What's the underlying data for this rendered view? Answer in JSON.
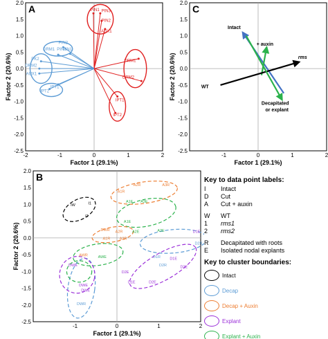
{
  "panels": {
    "A": {
      "letter": "A",
      "xlabel": "Factor 1 (29.1%)",
      "ylabel": "Factor 2 (20.6%)"
    },
    "B": {
      "letter": "B",
      "xlabel": "Factor 1 (29.1%)",
      "ylabel": "Factor 2 (20.6%)"
    },
    "C": {
      "letter": "C",
      "xlabel": "Factor 1 (29.1%)",
      "ylabel": "Factor 2 (20.6%)"
    }
  },
  "chart_data": [
    {
      "type": "scatter",
      "panel": "A",
      "xlim": [
        -2,
        2
      ],
      "ylim": [
        -2.5,
        2.0
      ],
      "xticks": [
        "-2",
        "-1",
        "0",
        "1",
        "2"
      ],
      "yticks": [
        "2.0",
        "1.5",
        "1.0",
        "0.5",
        "0.0",
        "-0.5",
        "-1.0",
        "-1.5",
        "-2.0",
        "-2.5"
      ],
      "colors": {
        "red": "#e02020",
        "blue": "#5b9bd5"
      },
      "labels": [
        {
          "text": "PIN1",
          "x": 0.02,
          "y": 1.75,
          "color": "red"
        },
        {
          "text": "PIN3",
          "x": 0.35,
          "y": 1.72,
          "color": "red"
        },
        {
          "text": "PIN2",
          "x": 0.35,
          "y": 1.42,
          "color": "red"
        },
        {
          "text": "AUX1",
          "x": 0.36,
          "y": 1.1,
          "color": "red"
        },
        {
          "text": "DRM1",
          "x": 1.05,
          "y": 0.2,
          "color": "red"
        },
        {
          "text": "DRM2",
          "x": 1.0,
          "y": -0.3,
          "color": "red"
        },
        {
          "text": "IPT1",
          "x": 0.75,
          "y": -1.0,
          "color": "red"
        },
        {
          "text": "IPT2",
          "x": 0.68,
          "y": -1.45,
          "color": "red"
        },
        {
          "text": "PIN2",
          "x": -0.9,
          "y": 0.75,
          "color": "blue"
        },
        {
          "text": "DRM1",
          "x": -1.32,
          "y": 0.55,
          "color": "blue"
        },
        {
          "text": "PIN1",
          "x": -0.78,
          "y": 0.55,
          "color": "blue"
        },
        {
          "text": "PIN3",
          "x": -0.95,
          "y": 0.55,
          "color": "blue"
        },
        {
          "text": "PK2",
          "x": -1.72,
          "y": 0.25,
          "color": "blue"
        },
        {
          "text": "DRM2",
          "x": -1.84,
          "y": 0.05,
          "color": "blue"
        },
        {
          "text": "AUX1",
          "x": -1.83,
          "y": -0.2,
          "color": "blue"
        },
        {
          "text": "IPT1",
          "x": -1.15,
          "y": -0.6,
          "color": "blue"
        },
        {
          "text": "IPT2",
          "x": -1.44,
          "y": -0.72,
          "color": "blue"
        }
      ],
      "vectors": [
        {
          "x": -0.02,
          "y": 1.68,
          "color": "red"
        },
        {
          "x": 0.18,
          "y": 1.68,
          "color": "red"
        },
        {
          "x": 0.22,
          "y": 1.45,
          "color": "red"
        },
        {
          "x": 0.32,
          "y": 1.2,
          "color": "red"
        },
        {
          "x": 1.3,
          "y": 0.3,
          "color": "red"
        },
        {
          "x": 1.38,
          "y": -0.38,
          "color": "red"
        },
        {
          "x": 0.68,
          "y": -0.85,
          "color": "red"
        },
        {
          "x": 0.62,
          "y": -1.35,
          "color": "red"
        },
        {
          "x": -0.9,
          "y": 0.65,
          "color": "blue"
        },
        {
          "x": -1.05,
          "y": 0.42,
          "color": "blue"
        },
        {
          "x": -0.7,
          "y": 0.45,
          "color": "blue"
        },
        {
          "x": -1.55,
          "y": 0.22,
          "color": "blue"
        },
        {
          "x": -1.6,
          "y": 0.0,
          "color": "blue"
        },
        {
          "x": -1.6,
          "y": -0.15,
          "color": "blue"
        },
        {
          "x": -1.05,
          "y": -0.48,
          "color": "blue"
        },
        {
          "x": -1.3,
          "y": -0.62,
          "color": "blue"
        }
      ],
      "clusters": [
        {
          "cx": 0.18,
          "cy": 1.5,
          "rx": 0.38,
          "ry": 0.45,
          "color": "red"
        },
        {
          "cx": 1.2,
          "cy": 0.0,
          "rx": 0.33,
          "ry": 0.58,
          "color": "red"
        },
        {
          "cx": 0.68,
          "cy": -1.15,
          "rx": 0.24,
          "ry": 0.45,
          "color": "red"
        },
        {
          "cx": -1.05,
          "cy": 0.6,
          "rx": 0.42,
          "ry": 0.22,
          "color": "blue"
        },
        {
          "cx": -1.55,
          "cy": 0.0,
          "rx": 0.32,
          "ry": 0.45,
          "color": "blue"
        },
        {
          "cx": -1.25,
          "cy": -0.65,
          "rx": 0.33,
          "ry": 0.2,
          "color": "blue"
        }
      ]
    },
    {
      "type": "scatter",
      "panel": "B",
      "xlim": [
        -2,
        2
      ],
      "ylim": [
        -2.5,
        2.0
      ],
      "xticks": [
        "-1",
        "0",
        "1",
        "2"
      ],
      "yticks": [
        "2.0",
        "1.5",
        "1.0",
        "0.5",
        "0.0",
        "-0.5",
        "-1.0",
        "-1.5",
        "-2.0",
        "-2.5"
      ],
      "colors": {
        "intact": "#000000",
        "decap": "#5b9bd5",
        "decap_auxin": "#ed7d31",
        "explant": "#9b30d9",
        "explant_auxin": "#2bb24c"
      },
      "points": [
        {
          "text": "A2R",
          "x": 0.48,
          "y": 1.55,
          "color": "decap_auxin"
        },
        {
          "text": "A3R",
          "x": 1.17,
          "y": 1.55,
          "color": "decap_auxin"
        },
        {
          "text": "A1R",
          "x": 0.1,
          "y": 1.35,
          "color": "decap_auxin"
        },
        {
          "text": "A1E",
          "x": 0.3,
          "y": 1.05,
          "color": "explant_auxin"
        },
        {
          "text": "A3E",
          "x": 0.65,
          "y": 1.05,
          "color": "explant_auxin"
        },
        {
          "text": "IW",
          "x": -1.05,
          "y": 0.95,
          "color": "intact"
        },
        {
          "text": "I1",
          "x": -0.65,
          "y": 1.0,
          "color": "intact"
        },
        {
          "text": "I2",
          "x": -0.72,
          "y": 0.62,
          "color": "intact"
        },
        {
          "text": "A1E",
          "x": 0.25,
          "y": 0.45,
          "color": "explant_auxin"
        },
        {
          "text": "A2E",
          "x": 0.45,
          "y": 0.15,
          "color": "explant_auxin"
        },
        {
          "text": "A2E",
          "x": 1.05,
          "y": 0.18,
          "color": "explant_auxin"
        },
        {
          "text": "DWR",
          "x": -0.28,
          "y": 0.2,
          "color": "decap_auxin"
        },
        {
          "text": "A2R",
          "x": 0.05,
          "y": 0.15,
          "color": "decap_auxin"
        },
        {
          "text": "D1E",
          "x": 1.9,
          "y": 0.15,
          "color": "explant"
        },
        {
          "text": "D2R",
          "x": 1.95,
          "y": -0.2,
          "color": "decap"
        },
        {
          "text": "A1R",
          "x": -0.25,
          "y": -0.05,
          "color": "decap_auxin"
        },
        {
          "text": "A3R",
          "x": 0.15,
          "y": -0.05,
          "color": "decap_auxin"
        },
        {
          "text": "AWR",
          "x": -0.8,
          "y": -0.55,
          "color": "decap_auxin"
        },
        {
          "text": "AWE",
          "x": -0.35,
          "y": -0.6,
          "color": "explant_auxin"
        },
        {
          "text": "DWE",
          "x": -1.05,
          "y": -0.85,
          "color": "explant"
        },
        {
          "text": "D1R",
          "x": 0.95,
          "y": -0.6,
          "color": "decap"
        },
        {
          "text": "D1E",
          "x": 1.35,
          "y": -0.65,
          "color": "explant"
        },
        {
          "text": "D2R",
          "x": 1.1,
          "y": -0.85,
          "color": "decap"
        },
        {
          "text": "D2E",
          "x": 1.6,
          "y": -0.9,
          "color": "explant"
        },
        {
          "text": "D2E",
          "x": 0.2,
          "y": -1.05,
          "color": "explant"
        },
        {
          "text": "D1E",
          "x": 0.35,
          "y": -1.35,
          "color": "explant"
        },
        {
          "text": "D2E",
          "x": 0.85,
          "y": -1.35,
          "color": "explant"
        },
        {
          "text": "DWE",
          "x": -0.8,
          "y": -1.45,
          "color": "explant"
        },
        {
          "text": "DWE",
          "x": -0.75,
          "y": -1.6,
          "color": "explant"
        },
        {
          "text": "DWR",
          "x": -0.85,
          "y": -2.0,
          "color": "decap"
        }
      ],
      "clusters": [
        {
          "cx": 0.65,
          "cy": 1.35,
          "rx": 0.8,
          "ry": 0.32,
          "rot": -8,
          "color": "decap_auxin"
        },
        {
          "cx": 0.7,
          "cy": 0.75,
          "rx": 0.72,
          "ry": 0.4,
          "rot": -12,
          "color": "explant_auxin"
        },
        {
          "cx": -0.9,
          "cy": 0.85,
          "rx": 0.42,
          "ry": 0.3,
          "rot": -28,
          "color": "intact"
        },
        {
          "cx": -0.1,
          "cy": 0.1,
          "rx": 0.5,
          "ry": 0.22,
          "rot": -10,
          "color": "decap_auxin"
        },
        {
          "cx": 1.35,
          "cy": -0.1,
          "rx": 0.8,
          "ry": 0.35,
          "rot": -5,
          "color": "decap"
        },
        {
          "cx": 1.1,
          "cy": -0.85,
          "rx": 0.9,
          "ry": 0.4,
          "rot": -30,
          "color": "explant"
        },
        {
          "cx": -0.45,
          "cy": -0.5,
          "rx": 0.6,
          "ry": 0.32,
          "rot": -8,
          "color": "explant_auxin"
        },
        {
          "cx": -0.85,
          "cy": -1.5,
          "rx": 0.32,
          "ry": 0.9,
          "rot": 8,
          "color": "decap"
        },
        {
          "cx": -0.95,
          "cy": -1.1,
          "rx": 0.42,
          "ry": 0.55,
          "rot": 10,
          "color": "explant"
        },
        {
          "cx": -0.9,
          "cy": -1.0,
          "rx": 0.3,
          "ry": 0.32,
          "rot": 0,
          "color": "explant_auxin"
        }
      ]
    },
    {
      "type": "biplot",
      "panel": "C",
      "xlim": [
        -2,
        2
      ],
      "ylim": [
        -2.5,
        2.0
      ],
      "xticks": [
        "-1",
        "0",
        "1",
        "2"
      ],
      "yticks": [
        "2.0",
        "1.5",
        "1.0",
        "0.5",
        "0.0",
        "-0.5",
        "-1.0",
        "-1.5",
        "-2.0",
        "-2.5"
      ],
      "arrows": [
        {
          "label": "Intact",
          "x0": 0.75,
          "y0": -0.75,
          "x1": -0.45,
          "y1": 1.1,
          "color": "#4472c4"
        },
        {
          "label": "+ auxin",
          "x0": 0.1,
          "y0": -0.2,
          "x1": 0.25,
          "y1": 0.65,
          "color": "#2bb24c"
        },
        {
          "label": "rms",
          "x0": -1.1,
          "y0": -0.5,
          "x1": 1.2,
          "y1": 0.2,
          "color": "#000000"
        },
        {
          "label": "Decapitated or explant",
          "x0": -0.35,
          "y0": 1.0,
          "x1": 0.7,
          "y1": -0.95,
          "color": "#2bb24c"
        }
      ],
      "labels": [
        {
          "text": "Intact",
          "x": -0.7,
          "y": 1.2
        },
        {
          "text": "+ auxin",
          "x": 0.2,
          "y": 0.7
        },
        {
          "text": "rms",
          "x": 1.3,
          "y": 0.3
        },
        {
          "text": "WT",
          "x": -1.55,
          "y": -0.6
        },
        {
          "text": "Decapitated",
          "x": 0.5,
          "y": -1.1
        },
        {
          "text": "or explant",
          "x": 0.55,
          "y": -1.3
        }
      ]
    }
  ],
  "key": {
    "title1": "Key to data point labels:",
    "labels": [
      {
        "code": "I",
        "text": "Intact"
      },
      {
        "code": "D",
        "text": "Cut"
      },
      {
        "code": "A",
        "text": "Cut + auxin"
      }
    ],
    "genotypes": [
      {
        "code": "W",
        "text": "WT"
      },
      {
        "code": "1",
        "text": "rms1"
      },
      {
        "code": "2",
        "text": "rms2"
      }
    ],
    "types": [
      {
        "code": "R",
        "text": "Decapitated with roots"
      },
      {
        "code": "E",
        "text": "Isolated nodal explants"
      }
    ],
    "title2": "Key to cluster boundaries:",
    "clusters": [
      {
        "text": "Intact",
        "color": "#000000"
      },
      {
        "text": "Decap",
        "color": "#5b9bd5"
      },
      {
        "text": "Decap + Auxin",
        "color": "#ed7d31"
      },
      {
        "text": "Explant",
        "color": "#9b30d9"
      },
      {
        "text": "Explant + Auxin",
        "color": "#2bb24c"
      }
    ]
  }
}
